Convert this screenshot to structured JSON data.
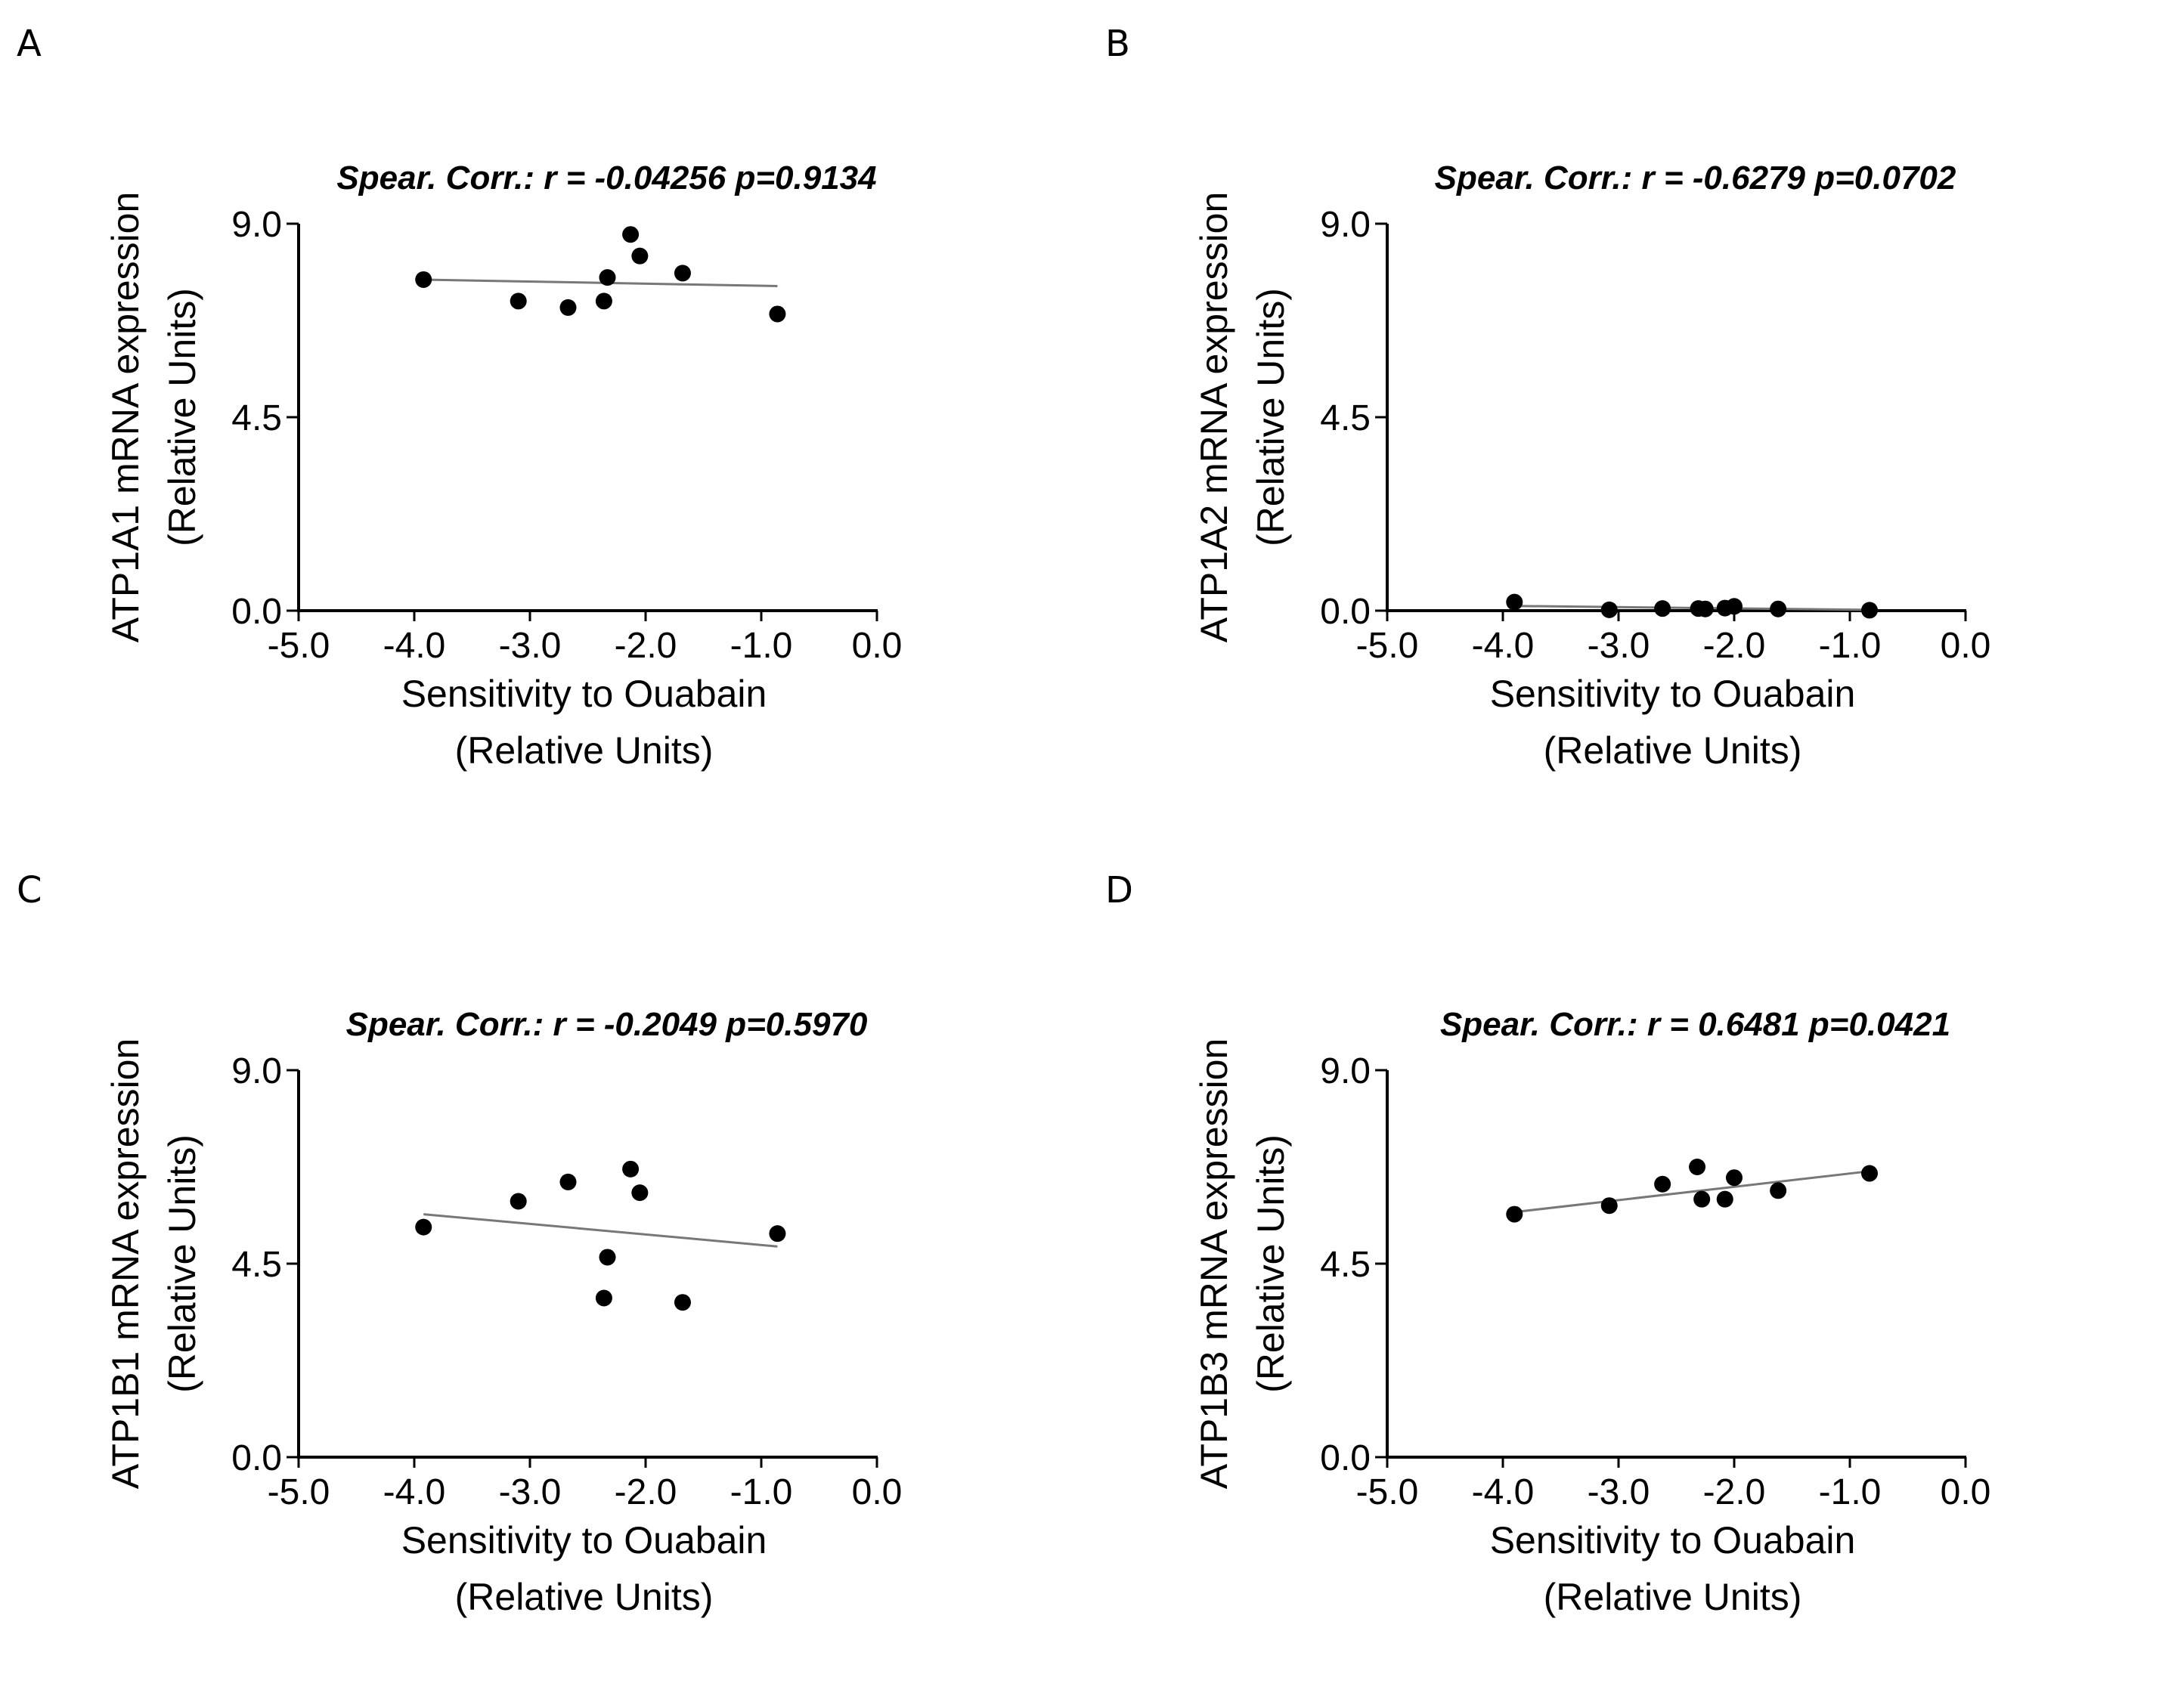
{
  "chart_data": [
    {
      "panel": "A",
      "type": "scatter",
      "title": "Spear. Corr.: r = -0.04256 p=0.9134",
      "xlabel": [
        "Sensitivity to Ouabain",
        "(Relative  Units)"
      ],
      "ylabel": [
        "ATP1A1 mRNA expression",
        "(Relative Units)"
      ],
      "xlim": [
        -5.0,
        0.0
      ],
      "ylim": [
        0.0,
        9.0
      ],
      "xticks": [
        "-5.0",
        "-4.0",
        "-3.0",
        "-2.0",
        "-1.0",
        "0.0"
      ],
      "yticks": [
        "0.0",
        "4.5",
        "9.0"
      ],
      "points": [
        {
          "x": -3.92,
          "y": 7.7
        },
        {
          "x": -3.1,
          "y": 7.2
        },
        {
          "x": -2.67,
          "y": 7.05
        },
        {
          "x": -2.36,
          "y": 7.2
        },
        {
          "x": -2.33,
          "y": 7.75
        },
        {
          "x": -2.13,
          "y": 8.75
        },
        {
          "x": -2.05,
          "y": 8.25
        },
        {
          "x": -1.68,
          "y": 7.85
        },
        {
          "x": -0.86,
          "y": 6.9
        }
      ],
      "fit": {
        "x": [
          -3.92,
          -0.86
        ],
        "y": [
          7.7,
          7.55
        ]
      }
    },
    {
      "panel": "B",
      "type": "scatter",
      "title": "Spear. Corr.: r = -0.6279 p=0.0702",
      "xlabel": [
        "Sensitivity to Ouabain",
        "(Relative  Units)"
      ],
      "ylabel": [
        "ATP1A2 mRNA expression",
        "(Relative Units)"
      ],
      "xlim": [
        -5.0,
        0.0
      ],
      "ylim": [
        0.0,
        9.0
      ],
      "xticks": [
        "-5.0",
        "-4.0",
        "-3.0",
        "-2.0",
        "-1.0",
        "0.0"
      ],
      "yticks": [
        "0.0",
        "4.5",
        "9.0"
      ],
      "points": [
        {
          "x": -3.9,
          "y": 0.2
        },
        {
          "x": -3.08,
          "y": 0.02
        },
        {
          "x": -2.62,
          "y": 0.05
        },
        {
          "x": -2.31,
          "y": 0.05
        },
        {
          "x": -2.25,
          "y": 0.04
        },
        {
          "x": -2.08,
          "y": 0.06
        },
        {
          "x": -2.0,
          "y": 0.1
        },
        {
          "x": -1.62,
          "y": 0.04
        },
        {
          "x": -0.83,
          "y": 0.01
        }
      ],
      "fit": {
        "x": [
          -3.9,
          -0.83
        ],
        "y": [
          0.11,
          0.02
        ]
      }
    },
    {
      "panel": "C",
      "type": "scatter",
      "title": "Spear. Corr.: r = -0.2049 p=0.5970",
      "xlabel": [
        "Sensitivity to Ouabain",
        "(Relative  Units)"
      ],
      "ylabel": [
        "ATP1B1 mRNA expression",
        "(Relative Units)"
      ],
      "xlim": [
        -5.0,
        0.0
      ],
      "ylim": [
        0.0,
        9.0
      ],
      "xticks": [
        "-5.0",
        "-4.0",
        "-3.0",
        "-2.0",
        "-1.0",
        "0.0"
      ],
      "yticks": [
        "0.0",
        "4.5",
        "9.0"
      ],
      "points": [
        {
          "x": -3.92,
          "y": 5.35
        },
        {
          "x": -3.1,
          "y": 5.95
        },
        {
          "x": -2.67,
          "y": 6.4
        },
        {
          "x": -2.36,
          "y": 3.7
        },
        {
          "x": -2.33,
          "y": 4.65
        },
        {
          "x": -2.13,
          "y": 6.7
        },
        {
          "x": -2.05,
          "y": 6.15
        },
        {
          "x": -1.68,
          "y": 3.6
        },
        {
          "x": -0.86,
          "y": 5.2
        }
      ],
      "fit": {
        "x": [
          -3.92,
          -0.86
        ],
        "y": [
          5.65,
          4.9
        ]
      }
    },
    {
      "panel": "D",
      "type": "scatter",
      "title": "Spear. Corr.: r = 0.6481 p=0.0421",
      "xlabel": [
        "Sensitivity to Ouabain",
        "(Relative  Units)"
      ],
      "ylabel": [
        "ATP1B3 mRNA expression",
        "(Relative Units)"
      ],
      "xlim": [
        -5.0,
        0.0
      ],
      "ylim": [
        0.0,
        9.0
      ],
      "xticks": [
        "-5.0",
        "-4.0",
        "-3.0",
        "-2.0",
        "-1.0",
        "0.0"
      ],
      "yticks": [
        "0.0",
        "4.5",
        "9.0"
      ],
      "points": [
        {
          "x": -3.9,
          "y": 5.65
        },
        {
          "x": -3.08,
          "y": 5.85
        },
        {
          "x": -2.62,
          "y": 6.35
        },
        {
          "x": -2.32,
          "y": 6.75
        },
        {
          "x": -2.28,
          "y": 6.0
        },
        {
          "x": -2.08,
          "y": 6.0
        },
        {
          "x": -2.0,
          "y": 6.5
        },
        {
          "x": -1.62,
          "y": 6.2
        },
        {
          "x": -0.83,
          "y": 6.6
        }
      ],
      "fit": {
        "x": [
          -3.9,
          -0.83
        ],
        "y": [
          5.7,
          6.65
        ]
      }
    }
  ]
}
